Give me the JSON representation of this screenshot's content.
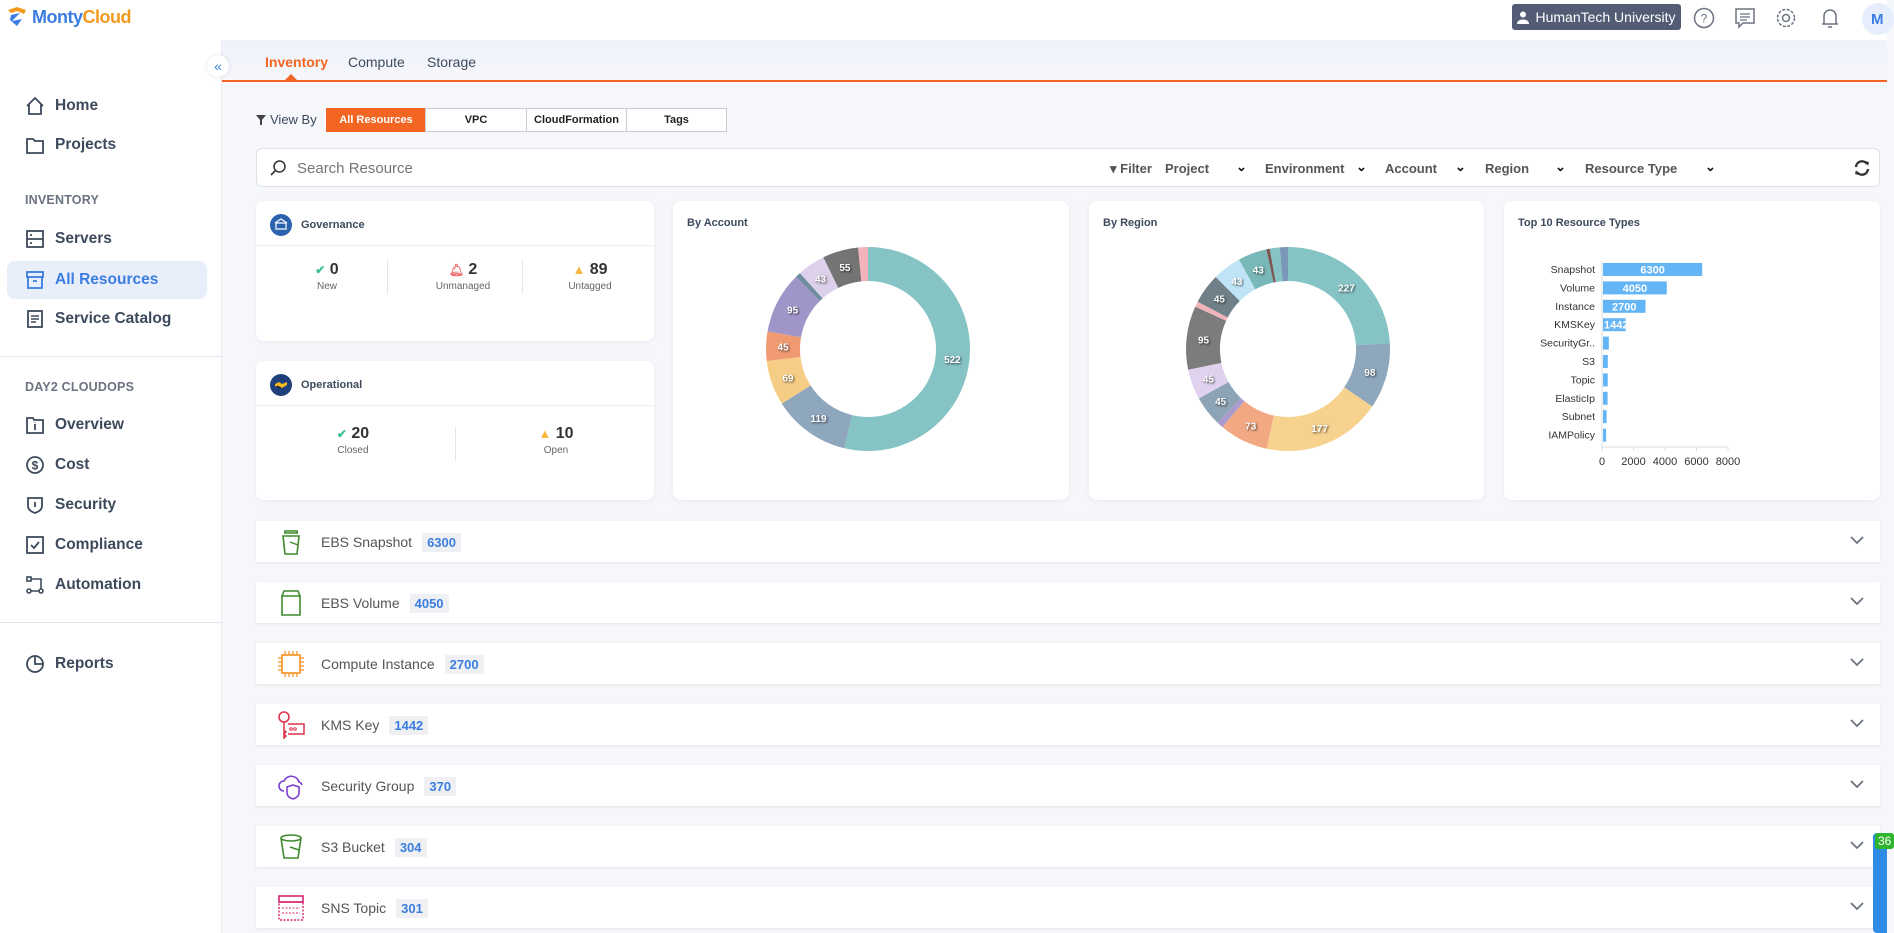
{
  "header": {
    "brand_part1": "Monty",
    "brand_part2": "Cloud",
    "org": "HumanTech University",
    "avatar": "M"
  },
  "sidebar": {
    "items_top": [
      {
        "label": "Home",
        "icon": "home-icon"
      },
      {
        "label": "Projects",
        "icon": "folder-icon"
      }
    ],
    "section_inventory": "INVENTORY",
    "items_inventory": [
      {
        "label": "Servers",
        "icon": "server-icon"
      },
      {
        "label": "All Resources",
        "icon": "archive-icon",
        "active": true
      },
      {
        "label": "Service Catalog",
        "icon": "document-icon"
      }
    ],
    "section_day2": "DAY2 CLOUDOPS",
    "items_day2": [
      {
        "label": "Overview",
        "icon": "info-folder-icon"
      },
      {
        "label": "Cost",
        "icon": "dollar-icon"
      },
      {
        "label": "Security",
        "icon": "shield-icon"
      },
      {
        "label": "Compliance",
        "icon": "checkbox-icon"
      },
      {
        "label": "Automation",
        "icon": "workflow-icon"
      }
    ],
    "items_bottom": [
      {
        "label": "Reports",
        "icon": "pie-chart-icon"
      }
    ]
  },
  "tabs": [
    {
      "label": "Inventory",
      "active": true
    },
    {
      "label": "Compute"
    },
    {
      "label": "Storage"
    }
  ],
  "view_by": {
    "label": "View By",
    "options": [
      "All Resources",
      "VPC",
      "CloudFormation",
      "Tags"
    ],
    "selected": "All Resources"
  },
  "search": {
    "placeholder": "Search Resource",
    "filter_label": "Filter",
    "filters": [
      "Project",
      "Environment",
      "Account",
      "Region",
      "Resource Type"
    ]
  },
  "governance": {
    "title": "Governance",
    "stats": [
      {
        "value": "0",
        "label": "New",
        "icon": "check-icon"
      },
      {
        "value": "2",
        "label": "Unmanaged",
        "icon": "bell-icon"
      },
      {
        "value": "89",
        "label": "Untagged",
        "icon": "warning-icon"
      }
    ]
  },
  "operational": {
    "title": "Operational",
    "stats": [
      {
        "value": "20",
        "label": "Closed",
        "icon": "check-icon"
      },
      {
        "value": "10",
        "label": "Open",
        "icon": "warning-icon"
      }
    ]
  },
  "chart_data": [
    {
      "type": "pie",
      "variant": "donut",
      "title": "By Account",
      "segments": [
        {
          "value": 522,
          "color": "#86c3c4",
          "labeled": true
        },
        {
          "value": 119,
          "color": "#8ea7bd",
          "labeled": true
        },
        {
          "value": 69,
          "color": "#f6cd85",
          "labeled": true
        },
        {
          "value": 45,
          "color": "#f09a72",
          "labeled": true
        },
        {
          "value": 95,
          "color": "#a095c8",
          "labeled": true
        },
        {
          "value": 8,
          "color": "#6e8ea0",
          "labeled": false
        },
        {
          "value": 43,
          "color": "#ddd0ea",
          "labeled": true
        },
        {
          "value": 55,
          "color": "#747474",
          "labeled": true
        },
        {
          "value": 15,
          "color": "#f2b3ba",
          "labeled": false
        }
      ]
    },
    {
      "type": "pie",
      "variant": "donut",
      "title": "By Region",
      "segments": [
        {
          "value": 227,
          "color": "#86c3c4",
          "labeled": true
        },
        {
          "value": 98,
          "color": "#8ea7bd",
          "labeled": true
        },
        {
          "value": 177,
          "color": "#f7d28f",
          "labeled": true
        },
        {
          "value": 73,
          "color": "#f2a882",
          "labeled": true
        },
        {
          "value": 10,
          "color": "#a99ccc",
          "labeled": false
        },
        {
          "value": 45,
          "color": "#8ca4b6",
          "labeled": true
        },
        {
          "value": 45,
          "color": "#e0d2ee",
          "labeled": true
        },
        {
          "value": 95,
          "color": "#7c7c7c",
          "labeled": true
        },
        {
          "value": 8,
          "color": "#f2b3ba",
          "labeled": false
        },
        {
          "value": 45,
          "color": "#6f8088",
          "labeled": true
        },
        {
          "value": 43,
          "color": "#bfe4f6",
          "labeled": true
        },
        {
          "value": 43,
          "color": "#79b8b8",
          "labeled": true
        },
        {
          "value": 5,
          "color": "#7a5a52",
          "labeled": false
        },
        {
          "value": 15,
          "color": "#86c3c4",
          "labeled": false
        },
        {
          "value": 12,
          "color": "#7b97b8",
          "labeled": false
        }
      ]
    },
    {
      "type": "bar",
      "orientation": "horizontal",
      "title": "Top 10 Resource Types",
      "categories": [
        "Snapshot",
        "Volume",
        "Instance",
        "KMSKey",
        "SecurityGr..",
        "S3",
        "Topic",
        "ElasticIp",
        "Subnet",
        "IAMPolicy"
      ],
      "values": [
        6300,
        4050,
        2700,
        1442,
        370,
        304,
        301,
        290,
        230,
        200
      ],
      "data_labels": [
        "6300",
        "4050",
        "2700",
        "1442",
        "",
        "",
        "",
        "",
        "",
        ""
      ],
      "xlim": [
        0,
        8000
      ],
      "xticks": [
        "0",
        "2000",
        "4000",
        "6000",
        "8000"
      ],
      "color": "#64b5f6"
    }
  ],
  "resources": [
    {
      "label": "EBS Snapshot",
      "count": "6300",
      "icon": "snapshot-bucket-icon",
      "color": "#3f8a2c"
    },
    {
      "label": "EBS Volume",
      "count": "4050",
      "icon": "volume-icon",
      "color": "#3f8a2c"
    },
    {
      "label": "Compute Instance",
      "count": "2700",
      "icon": "chip-icon",
      "color": "#f5901e"
    },
    {
      "label": "KMS Key",
      "count": "1442",
      "icon": "key-icon",
      "color": "#dd344c"
    },
    {
      "label": "Security Group",
      "count": "370",
      "icon": "cloud-shield-icon",
      "color": "#7d3fd0"
    },
    {
      "label": "S3 Bucket",
      "count": "304",
      "icon": "bucket-icon",
      "color": "#3f8a2c"
    },
    {
      "label": "SNS Topic",
      "count": "301",
      "icon": "topic-icon",
      "color": "#d6246e"
    }
  ],
  "widget": {
    "badge": "36"
  }
}
